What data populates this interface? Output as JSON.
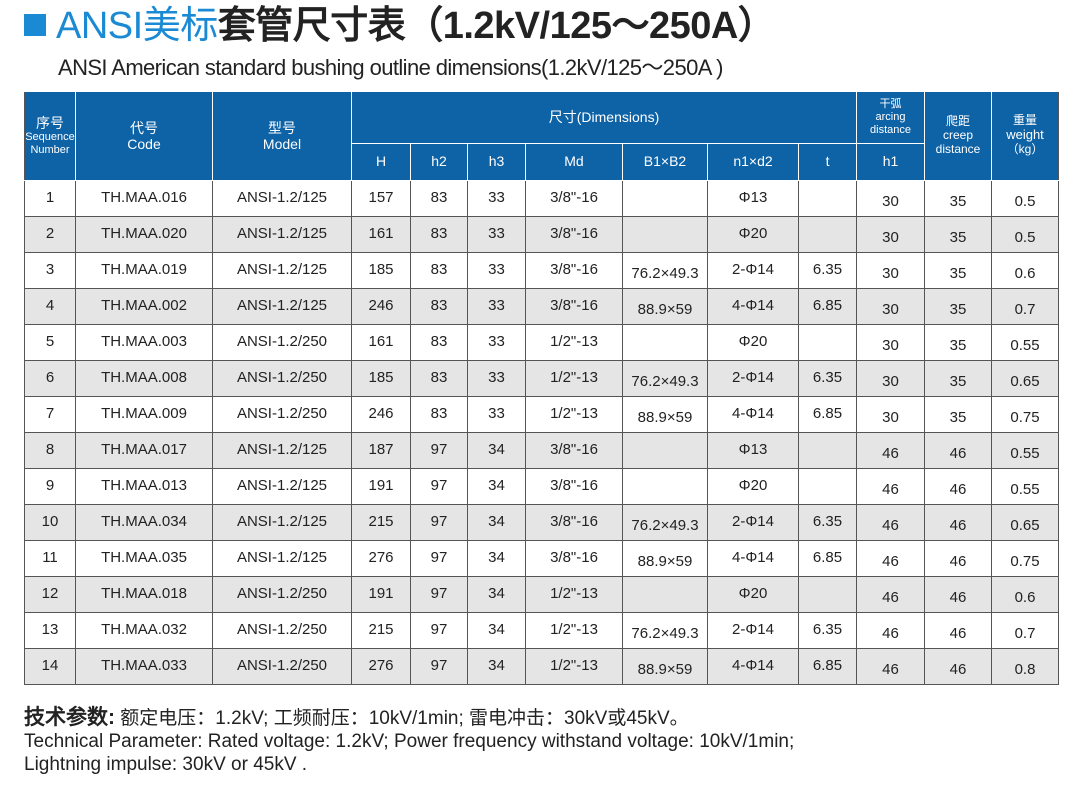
{
  "title": {
    "blue": "ANSI美标",
    "dark": "套管尺寸表（1.2kV/125～250A）"
  },
  "subtitle": "ANSI American standard bushing outline dimensions(1.2kV/125～250A )",
  "colors": {
    "header_bg": "#0e62a6",
    "title_accent": "#1a8ad4",
    "alt_row": "#e5e5e5"
  },
  "headers": {
    "seq_cn": "序号",
    "seq_en1": "Sequence",
    "seq_en2": "Number",
    "code_cn": "代号",
    "code_en": "Code",
    "model_cn": "型号",
    "model_en": "Model",
    "dimensions": "尺寸(Dimensions)",
    "arc_cn": "干弧",
    "arc_en1": "arcing",
    "arc_en2": "distance",
    "creep_cn": "爬距",
    "creep_en1": "creep",
    "creep_en2": "distance",
    "weight_cn": "重量",
    "weight_en": "weight",
    "weight_unit": "（kg）",
    "sub": [
      "H",
      "h2",
      "h3",
      "Md",
      "B1×B2",
      "n1×d2",
      "t",
      "h1"
    ]
  },
  "rows": [
    [
      "1",
      "TH.MAA.016",
      "ANSI-1.2/125",
      "157",
      "83",
      "33",
      "3/8\"-16",
      "",
      "Φ13",
      "",
      "30",
      "35",
      "0.5"
    ],
    [
      "2",
      "TH.MAA.020",
      "ANSI-1.2/125",
      "161",
      "83",
      "33",
      "3/8\"-16",
      "",
      "Φ20",
      "",
      "30",
      "35",
      "0.5"
    ],
    [
      "3",
      "TH.MAA.019",
      "ANSI-1.2/125",
      "185",
      "83",
      "33",
      "3/8\"-16",
      "76.2×49.3",
      "2-Φ14",
      "6.35",
      "30",
      "35",
      "0.6"
    ],
    [
      "4",
      "TH.MAA.002",
      "ANSI-1.2/125",
      "246",
      "83",
      "33",
      "3/8\"-16",
      "88.9×59",
      "4-Φ14",
      "6.85",
      "30",
      "35",
      "0.7"
    ],
    [
      "5",
      "TH.MAA.003",
      "ANSI-1.2/250",
      "161",
      "83",
      "33",
      "1/2\"-13",
      "",
      "Φ20",
      "",
      "30",
      "35",
      "0.55"
    ],
    [
      "6",
      "TH.MAA.008",
      "ANSI-1.2/250",
      "185",
      "83",
      "33",
      "1/2\"-13",
      "76.2×49.3",
      "2-Φ14",
      "6.35",
      "30",
      "35",
      "0.65"
    ],
    [
      "7",
      "TH.MAA.009",
      "ANSI-1.2/250",
      "246",
      "83",
      "33",
      "1/2\"-13",
      "88.9×59",
      "4-Φ14",
      "6.85",
      "30",
      "35",
      "0.75"
    ],
    [
      "8",
      "TH.MAA.017",
      "ANSI-1.2/125",
      "187",
      "97",
      "34",
      "3/8\"-16",
      "",
      "Φ13",
      "",
      "46",
      "46",
      "0.55"
    ],
    [
      "9",
      "TH.MAA.013",
      "ANSI-1.2/125",
      "191",
      "97",
      "34",
      "3/8\"-16",
      "",
      "Φ20",
      "",
      "46",
      "46",
      "0.55"
    ],
    [
      "10",
      "TH.MAA.034",
      "ANSI-1.2/125",
      "215",
      "97",
      "34",
      "3/8\"-16",
      "76.2×49.3",
      "2-Φ14",
      "6.35",
      "46",
      "46",
      "0.65"
    ],
    [
      "11",
      "TH.MAA.035",
      "ANSI-1.2/125",
      "276",
      "97",
      "34",
      "3/8\"-16",
      "88.9×59",
      "4-Φ14",
      "6.85",
      "46",
      "46",
      "0.75"
    ],
    [
      "12",
      "TH.MAA.018",
      "ANSI-1.2/250",
      "191",
      "97",
      "34",
      "1/2\"-13",
      "",
      "Φ20",
      "",
      "46",
      "46",
      "0.6"
    ],
    [
      "13",
      "TH.MAA.032",
      "ANSI-1.2/250",
      "215",
      "97",
      "34",
      "1/2\"-13",
      "76.2×49.3",
      "2-Φ14",
      "6.35",
      "46",
      "46",
      "0.7"
    ],
    [
      "14",
      "TH.MAA.033",
      "ANSI-1.2/250",
      "276",
      "97",
      "34",
      "1/2\"-13",
      "88.9×59",
      "4-Φ14",
      "6.85",
      "46",
      "46",
      "0.8"
    ]
  ],
  "footer": {
    "label": "技术参数:",
    "cn": " 额定电压：1.2kV;  工频耐压：10kV/1min;  雷电冲击：30kV或45kV。",
    "en1": "Technical Parameter: Rated voltage: 1.2kV; Power frequency withstand voltage: 10kV/1min;",
    "en2": "Lightning impulse: 30kV or 45kV  ."
  }
}
